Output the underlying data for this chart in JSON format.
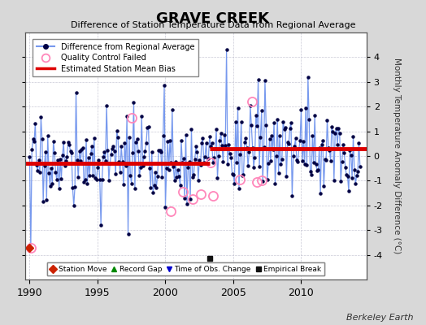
{
  "title": "GRAVE CREEK",
  "subtitle": "Difference of Station Temperature Data from Regional Average",
  "ylabel": "Monthly Temperature Anomaly Difference (°C)",
  "xlim": [
    1989.7,
    2014.8
  ],
  "ylim": [
    -5,
    5
  ],
  "yticks": [
    -4,
    -3,
    -2,
    -1,
    0,
    1,
    2,
    3,
    4
  ],
  "xticks": [
    1990,
    1995,
    2000,
    2005,
    2010
  ],
  "background_color": "#d8d8d8",
  "plot_bg_color": "#ffffff",
  "line_color": "#7799ee",
  "dot_color": "#000044",
  "bias_y1": -0.28,
  "bias_y2": 0.28,
  "bias_x1_start": 1989.7,
  "bias_x1_end": 2003.25,
  "bias_x2_start": 2003.25,
  "bias_x2_end": 2014.8,
  "bias_color": "#dd0000",
  "bias_lw": 3.5,
  "empirical_break_x": 2003.25,
  "empirical_break_y": -4.15,
  "station_move_x": 1990.0,
  "station_move_y": -3.72,
  "berkeley_earth_text": "Berkeley Earth"
}
